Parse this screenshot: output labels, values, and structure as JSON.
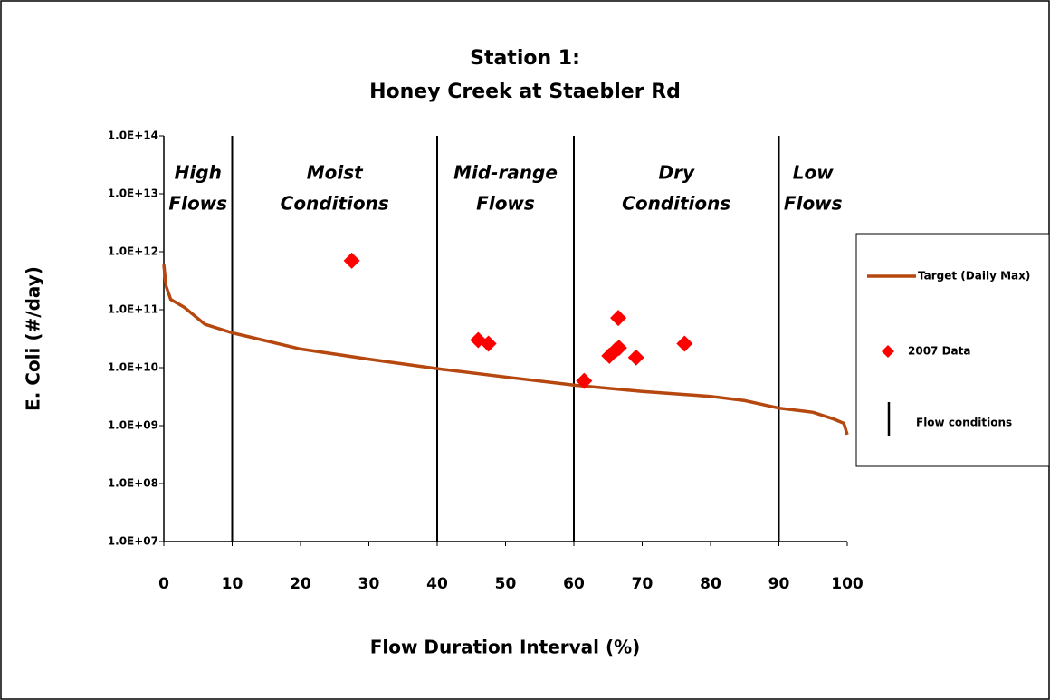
{
  "chart_data": {
    "type": "line",
    "title": [
      "Station 1:",
      "Honey Creek at Staebler Rd"
    ],
    "x_label": "Flow Duration Interval (%)",
    "y_label": "E. Coli (#/day)",
    "xlim": [
      0,
      100
    ],
    "xticks": [
      0,
      10,
      20,
      30,
      40,
      50,
      60,
      70,
      80,
      90,
      100
    ],
    "ylim": [
      10000000.0,
      100000000000000.0
    ],
    "yticks": [
      {
        "value": 10000000.0,
        "label": "1.0E+07"
      },
      {
        "value": 100000000.0,
        "label": "1.0E+08"
      },
      {
        "value": 1000000000.0,
        "label": "1.0E+09"
      },
      {
        "value": 10000000000.0,
        "label": "1.0E+10"
      },
      {
        "value": 100000000000.0,
        "label": "1.0E+11"
      },
      {
        "value": 1000000000000.0,
        "label": "1.0E+12"
      },
      {
        "value": 10000000000000.0,
        "label": "1.0E+13"
      },
      {
        "value": 100000000000000.0,
        "label": "1.0E+14"
      }
    ],
    "y_scale": "log",
    "legend_position": "right",
    "series": [
      {
        "name": "Target (Daily Max)",
        "type": "line",
        "color": "#b5470f",
        "x": [
          0,
          0.3,
          1,
          3,
          6,
          10,
          20,
          30,
          40,
          50,
          60,
          70,
          80,
          85,
          90,
          95,
          98,
          99.5,
          100
        ],
        "values": [
          600000000000.0,
          260000000000.0,
          150000000000.0,
          110000000000.0,
          56000000000.0,
          40000000000.0,
          21000000000.0,
          14000000000.0,
          9600000000.0,
          6900000000.0,
          5000000000.0,
          3900000000.0,
          3200000000.0,
          2700000000.0,
          2000000000.0,
          1700000000.0,
          1300000000.0,
          1100000000.0,
          700000000.0
        ]
      },
      {
        "name": "2007 Data",
        "type": "scatter",
        "color": "#ff0000",
        "x": [
          27.5,
          46,
          47.5,
          61.5,
          65.2,
          66.1,
          66.5,
          66.6,
          69.1,
          76.2
        ],
        "values": [
          700000000000.0,
          30000000000.0,
          26000000000.0,
          5900000000.0,
          16000000000.0,
          20000000000.0,
          72000000000.0,
          22000000000.0,
          15000000000.0,
          26000000000.0
        ]
      },
      {
        "name": "Flow conditions",
        "type": "vline",
        "color": "#000000",
        "x": [
          10,
          40,
          60,
          90
        ]
      }
    ],
    "zones": [
      {
        "label": [
          "High",
          "Flows"
        ],
        "from": 0,
        "to": 10
      },
      {
        "label": [
          "Moist",
          "Conditions"
        ],
        "from": 10,
        "to": 40
      },
      {
        "label": [
          "Mid-range",
          "Flows"
        ],
        "from": 40,
        "to": 60
      },
      {
        "label": [
          "Dry",
          "Conditions"
        ],
        "from": 60,
        "to": 90
      },
      {
        "label": [
          "Low",
          "Flows"
        ],
        "from": 90,
        "to": 100
      }
    ]
  }
}
